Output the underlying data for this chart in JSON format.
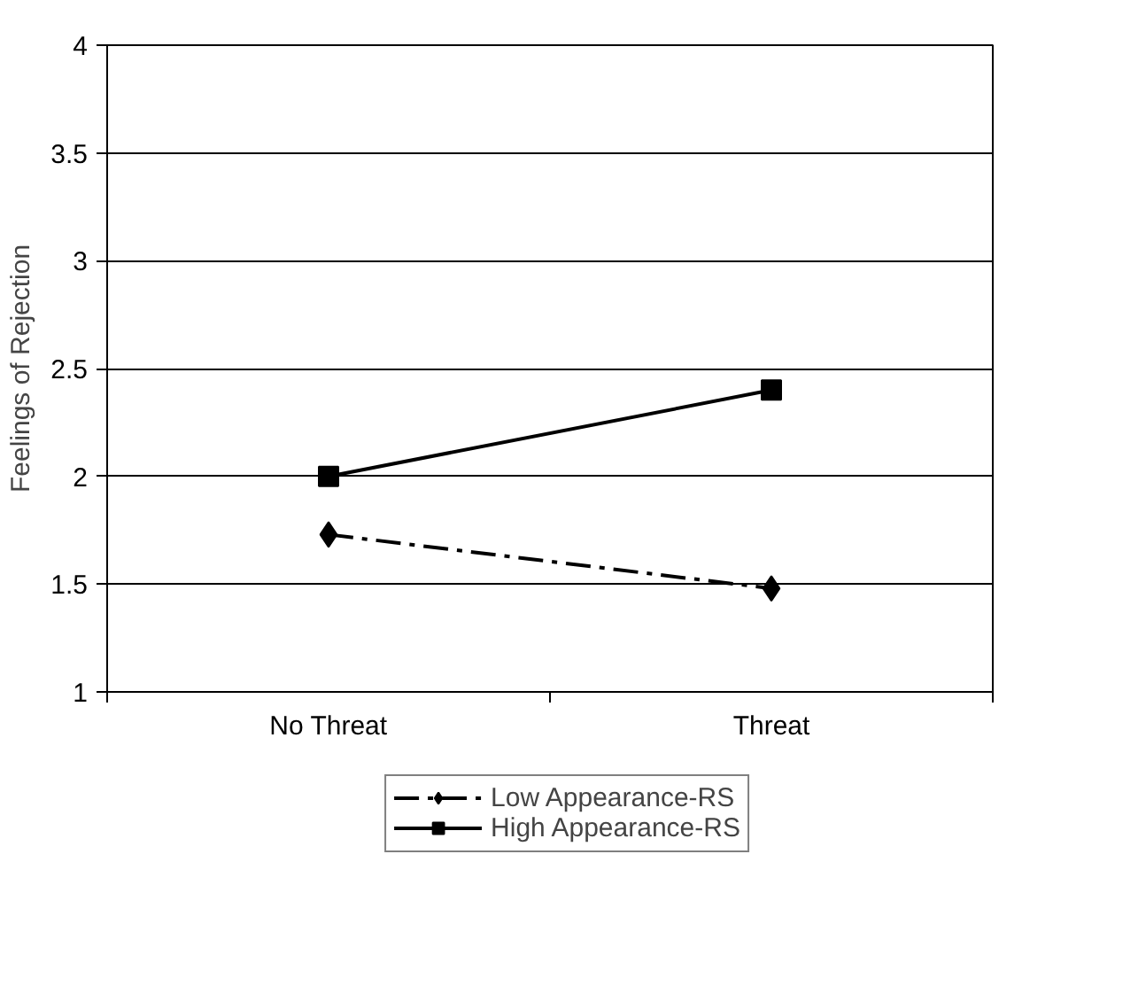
{
  "chart_data": {
    "type": "line",
    "ylabel": "Feelings of Rejection",
    "categories": [
      "No Threat",
      "Threat"
    ],
    "series": [
      {
        "name": "Low Appearance-RS",
        "color": "#000000",
        "values": [
          1.73,
          1.48
        ],
        "marker": "diamond",
        "line_style": "dashdot"
      },
      {
        "name": "High Appearance-RS",
        "color": "#000000",
        "values": [
          2.0,
          2.4
        ],
        "marker": "square",
        "line_style": "solid"
      }
    ],
    "ylim": [
      1,
      4
    ],
    "yticks": [
      1,
      1.5,
      2,
      2.5,
      3,
      3.5,
      4
    ],
    "grid": "y",
    "legend": "bottom"
  }
}
